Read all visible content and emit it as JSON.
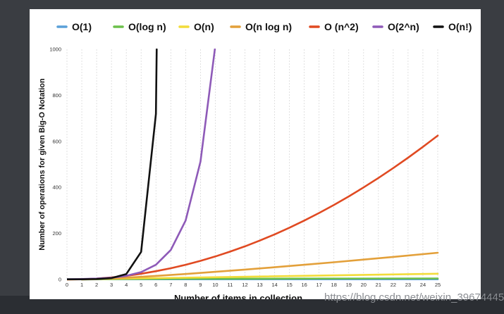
{
  "chart_data": {
    "type": "line",
    "title": "",
    "xlabel": "Number of items in collection",
    "ylabel": "Number of operations for given Big-O Notation",
    "xlim": [
      0,
      25
    ],
    "ylim": [
      0,
      1000
    ],
    "x_ticks": [
      "0",
      "1",
      "2",
      "3",
      "4",
      "5",
      "6",
      "7",
      "8",
      "9",
      "10",
      "11",
      "12",
      "13",
      "14",
      "15",
      "16",
      "17",
      "18",
      "19",
      "20",
      "21",
      "22",
      "23",
      "24",
      "25"
    ],
    "y_ticks": [
      "0",
      "200",
      "400",
      "600",
      "800",
      "1000"
    ],
    "grid": "vertical dashed",
    "legend_position": "top",
    "series": [
      {
        "name": "O(1)",
        "color": "#5aa0d8",
        "x": [
          0,
          25
        ],
        "y": [
          1,
          1
        ]
      },
      {
        "name": "O(log n)",
        "color": "#6cc04a",
        "x": [
          1,
          2,
          4,
          8,
          16,
          25
        ],
        "y": [
          0,
          1,
          2,
          3,
          4,
          4.64
        ]
      },
      {
        "name": "O(n)",
        "color": "#f2dc3a",
        "x": [
          0,
          25
        ],
        "y": [
          0,
          25
        ]
      },
      {
        "name": "O(n log n)",
        "color": "#e3a03a",
        "x": [
          1,
          2,
          3,
          4,
          5,
          6,
          8,
          10,
          12,
          14,
          16,
          18,
          20,
          22,
          25
        ],
        "y": [
          0,
          2,
          4.75,
          8,
          11.6,
          15.5,
          24,
          33.2,
          43,
          53.3,
          64,
          75,
          86.4,
          98.1,
          116.1
        ]
      },
      {
        "name": "O (n^2)",
        "color": "#e04a22",
        "x": [
          0,
          1,
          2,
          3,
          4,
          5,
          6,
          7,
          8,
          9,
          10,
          11,
          12,
          13,
          14,
          15,
          16,
          17,
          18,
          19,
          20,
          21,
          22,
          23,
          24,
          25
        ],
        "y": [
          0,
          1,
          4,
          9,
          16,
          25,
          36,
          49,
          64,
          81,
          100,
          121,
          144,
          169,
          196,
          225,
          256,
          289,
          324,
          361,
          400,
          441,
          484,
          529,
          576,
          625
        ]
      },
      {
        "name": "O(2^n)",
        "color": "#8e5ab8",
        "x": [
          0,
          1,
          2,
          3,
          4,
          5,
          6,
          7,
          8,
          9,
          9.97
        ],
        "y": [
          1,
          2,
          4,
          8,
          16,
          32,
          64,
          128,
          256,
          512,
          1000
        ]
      },
      {
        "name": "O(n!)",
        "color": "#111111",
        "x": [
          0,
          1,
          2,
          3,
          4,
          5,
          6,
          6.05
        ],
        "y": [
          1,
          1,
          2,
          6,
          24,
          120,
          720,
          1000
        ]
      }
    ]
  },
  "watermark": "https://blog.csdn.net/weixin_39674445"
}
